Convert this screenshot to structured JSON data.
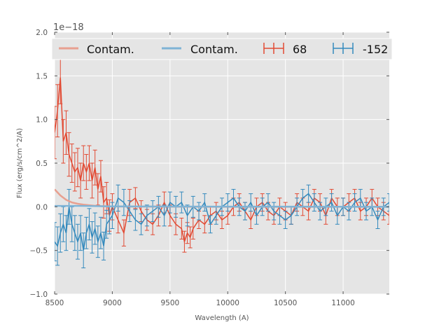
{
  "chart_data": {
    "type": "line",
    "title": "",
    "xlabel": "Wavelength (A)",
    "ylabel": "Flux (erg/s/cm^2/A)",
    "offset_text": "1e−18",
    "xlim": [
      8500,
      11400
    ],
    "ylim": [
      -1.0,
      2.0
    ],
    "xticks": [
      8500,
      9000,
      9500,
      10000,
      10500,
      11000
    ],
    "xtick_labels": [
      "8500",
      "9000",
      "9500",
      "10000",
      "10500",
      "11000"
    ],
    "yticks": [
      -1.0,
      -0.5,
      0.0,
      0.5,
      1.0,
      1.5,
      2.0
    ],
    "ytick_labels": [
      "−1.0",
      "−0.5",
      "0.0",
      "0.5",
      "1.0",
      "1.5",
      "2.0"
    ],
    "grid": true,
    "legend_position": "top",
    "legend": [
      "Contam.",
      "Contam.",
      "68",
      "-152"
    ],
    "series": [
      {
        "name": "Contam.",
        "kind": "line",
        "color": "#E8A090",
        "x": [
          8500,
          8550,
          8600,
          8650,
          8700,
          8750,
          8800,
          8850,
          8900,
          9000,
          9500,
          10000,
          10500,
          11000,
          11400
        ],
        "y": [
          0.2,
          0.13,
          0.08,
          0.05,
          0.035,
          0.025,
          0.018,
          0.012,
          0.008,
          0.004,
          0.001,
          0.0,
          0.0,
          0.0,
          0.0
        ]
      },
      {
        "name": "Contam.",
        "kind": "line",
        "color": "#7FB3D5",
        "x": [
          8500,
          8700,
          9000,
          9500,
          10000,
          10500,
          11000,
          11400
        ],
        "y": [
          0.01,
          0.01,
          0.005,
          0.003,
          0.002,
          0.002,
          0.001,
          0.0
        ]
      },
      {
        "name": "68",
        "kind": "errorbar",
        "color": "#E24A33",
        "x": [
          8500,
          8525,
          8550,
          8575,
          8600,
          8625,
          8650,
          8675,
          8700,
          8725,
          8750,
          8775,
          8800,
          8825,
          8850,
          8875,
          8900,
          8925,
          8950,
          8975,
          9000,
          9050,
          9100,
          9150,
          9200,
          9250,
          9300,
          9350,
          9400,
          9450,
          9500,
          9550,
          9600,
          9625,
          9650,
          9675,
          9700,
          9750,
          9800,
          9850,
          9900,
          9950,
          10000,
          10050,
          10100,
          10150,
          10200,
          10250,
          10300,
          10350,
          10400,
          10450,
          10500,
          10550,
          10600,
          10650,
          10700,
          10750,
          10800,
          10850,
          10900,
          10950,
          11000,
          11050,
          11100,
          11150,
          11200,
          11250,
          11300,
          11350,
          11400
        ],
        "y": [
          0.85,
          1.1,
          1.48,
          0.75,
          0.85,
          0.6,
          0.5,
          0.4,
          0.45,
          0.3,
          0.5,
          0.4,
          0.5,
          0.3,
          0.45,
          0.2,
          0.35,
          0.05,
          0.1,
          -0.1,
          0.0,
          -0.15,
          -0.3,
          0.05,
          0.1,
          -0.05,
          -0.15,
          -0.2,
          -0.1,
          0.05,
          -0.1,
          -0.2,
          -0.25,
          -0.4,
          -0.3,
          -0.35,
          -0.25,
          -0.15,
          -0.2,
          -0.1,
          -0.05,
          -0.15,
          -0.1,
          0.0,
          0.05,
          -0.05,
          -0.15,
          0.0,
          0.05,
          -0.05,
          -0.1,
          0.0,
          -0.05,
          -0.1,
          0.05,
          0.0,
          -0.05,
          0.1,
          0.05,
          -0.1,
          0.1,
          0.0,
          0.0,
          0.05,
          0.1,
          -0.05,
          0.0,
          0.1,
          0.0,
          -0.05,
          -0.1
        ],
        "err": [
          0.3,
          0.3,
          0.3,
          0.25,
          0.25,
          0.25,
          0.22,
          0.22,
          0.22,
          0.2,
          0.2,
          0.2,
          0.2,
          0.2,
          0.2,
          0.18,
          0.18,
          0.18,
          0.18,
          0.18,
          0.15,
          0.15,
          0.15,
          0.15,
          0.12,
          0.12,
          0.12,
          0.12,
          0.12,
          0.12,
          0.12,
          0.12,
          0.12,
          0.12,
          0.12,
          0.12,
          0.12,
          0.1,
          0.1,
          0.1,
          0.1,
          0.1,
          0.1,
          0.1,
          0.1,
          0.1,
          0.1,
          0.1,
          0.1,
          0.1,
          0.1,
          0.1,
          0.1,
          0.1,
          0.1,
          0.1,
          0.1,
          0.1,
          0.1,
          0.1,
          0.1,
          0.1,
          0.1,
          0.1,
          0.1,
          0.1,
          0.1,
          0.1,
          0.1,
          0.1,
          0.1
        ]
      },
      {
        "name": "-152",
        "kind": "errorbar",
        "color": "#348ABD",
        "x": [
          8500,
          8525,
          8550,
          8575,
          8600,
          8625,
          8650,
          8675,
          8700,
          8725,
          8750,
          8775,
          8800,
          8825,
          8850,
          8875,
          8900,
          8925,
          8950,
          8975,
          9000,
          9050,
          9100,
          9150,
          9200,
          9250,
          9300,
          9350,
          9400,
          9450,
          9500,
          9550,
          9600,
          9650,
          9700,
          9750,
          9800,
          9850,
          9900,
          9950,
          10000,
          10050,
          10100,
          10150,
          10200,
          10250,
          10300,
          10350,
          10400,
          10450,
          10500,
          10550,
          10600,
          10650,
          10700,
          10750,
          10800,
          10850,
          10900,
          10950,
          11000,
          11050,
          11100,
          11150,
          11200,
          11250,
          11300,
          11350,
          11400
        ],
        "y": [
          -0.4,
          -0.45,
          -0.3,
          -0.2,
          -0.3,
          0.0,
          -0.2,
          -0.3,
          -0.4,
          -0.3,
          -0.5,
          -0.3,
          -0.2,
          -0.35,
          -0.25,
          -0.4,
          -0.3,
          -0.45,
          -0.2,
          -0.15,
          -0.1,
          0.1,
          0.05,
          -0.05,
          -0.15,
          -0.2,
          -0.1,
          -0.05,
          0.0,
          -0.1,
          0.05,
          0.0,
          0.05,
          -0.1,
          0.0,
          -0.05,
          0.05,
          -0.2,
          -0.1,
          0.0,
          0.05,
          0.1,
          0.0,
          -0.05,
          0.05,
          -0.1,
          0.0,
          0.05,
          -0.05,
          -0.1,
          -0.15,
          -0.1,
          0.0,
          0.1,
          0.15,
          0.05,
          -0.05,
          0.0,
          0.05,
          -0.1,
          0.0,
          -0.05,
          0.05,
          0.1,
          -0.05,
          0.0,
          -0.15,
          0.0,
          0.05
        ],
        "err": [
          0.22,
          0.22,
          0.22,
          0.2,
          0.2,
          0.2,
          0.2,
          0.2,
          0.2,
          0.2,
          0.2,
          0.18,
          0.18,
          0.18,
          0.18,
          0.18,
          0.18,
          0.16,
          0.16,
          0.16,
          0.15,
          0.15,
          0.15,
          0.12,
          0.12,
          0.12,
          0.12,
          0.12,
          0.12,
          0.12,
          0.12,
          0.12,
          0.12,
          0.12,
          0.12,
          0.1,
          0.1,
          0.1,
          0.1,
          0.1,
          0.1,
          0.1,
          0.1,
          0.1,
          0.1,
          0.1,
          0.1,
          0.1,
          0.1,
          0.1,
          0.1,
          0.1,
          0.1,
          0.1,
          0.1,
          0.1,
          0.1,
          0.1,
          0.1,
          0.1,
          0.1,
          0.1,
          0.1,
          0.1,
          0.1,
          0.1,
          0.1,
          0.1,
          0.1
        ]
      }
    ]
  }
}
